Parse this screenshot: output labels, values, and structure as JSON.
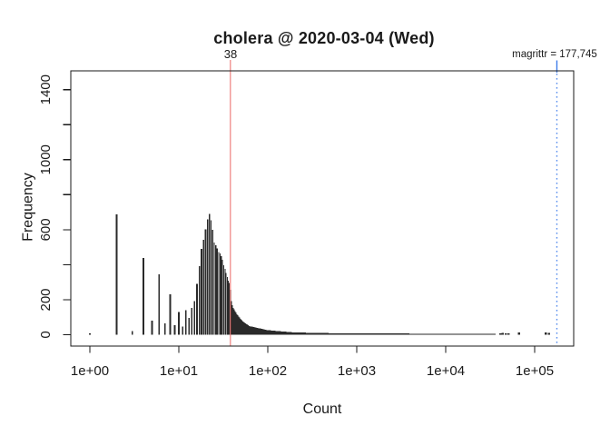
{
  "chart_data": {
    "type": "bar",
    "subtype": "histogram-log-x",
    "title": "cholera @ 2020-03-04 (Wed)",
    "xlabel": "Count",
    "ylabel": "Frequency",
    "x_scale": "log10",
    "x_range": [
      1,
      177745
    ],
    "ylim": [
      0,
      1450
    ],
    "grid": false,
    "x_ticks": [
      {
        "value": 1,
        "label": "1e+00"
      },
      {
        "value": 10,
        "label": "1e+01"
      },
      {
        "value": 100,
        "label": "1e+02"
      },
      {
        "value": 1000,
        "label": "1e+03"
      },
      {
        "value": 10000,
        "label": "1e+04"
      },
      {
        "value": 100000,
        "label": "1e+05"
      }
    ],
    "y_ticks": [
      {
        "value": 0,
        "label": "0"
      },
      {
        "value": 200,
        "label": "200"
      },
      {
        "value": 400,
        "label": ""
      },
      {
        "value": 600,
        "label": "600"
      },
      {
        "value": 800,
        "label": ""
      },
      {
        "value": 1000,
        "label": "1000"
      },
      {
        "value": 1200,
        "label": ""
      },
      {
        "value": 1400,
        "label": "1400"
      }
    ],
    "marker_red": {
      "value": 38,
      "label": "38",
      "color": "#e8403c"
    },
    "marker_blue": {
      "value": 177745,
      "label": "magrittr = 177,745",
      "color": "#3d7bea"
    },
    "bar_color": "#2a2a2a",
    "bars": [
      [
        1,
        8
      ],
      [
        2,
        688
      ],
      [
        3,
        22
      ],
      [
        4,
        438
      ],
      [
        5,
        80
      ],
      [
        6,
        346
      ],
      [
        7,
        65
      ],
      [
        8,
        232
      ],
      [
        9,
        55
      ],
      [
        10,
        130
      ],
      [
        11,
        48
      ],
      [
        12,
        140
      ],
      [
        13,
        95
      ],
      [
        14,
        152
      ],
      [
        15,
        192
      ],
      [
        16,
        290
      ],
      [
        17,
        392
      ],
      [
        18,
        490
      ],
      [
        19,
        542
      ],
      [
        20,
        602
      ],
      [
        21,
        660
      ],
      [
        22,
        690
      ],
      [
        23,
        655
      ],
      [
        24,
        600
      ],
      [
        25,
        528
      ],
      [
        26,
        512
      ],
      [
        27,
        494
      ],
      [
        28,
        472
      ],
      [
        29,
        465
      ],
      [
        30,
        448
      ],
      [
        31,
        428
      ],
      [
        32,
        398
      ],
      [
        33,
        375
      ],
      [
        34,
        352
      ],
      [
        35,
        330
      ],
      [
        36,
        310
      ],
      [
        37,
        295
      ],
      [
        38,
        258
      ],
      [
        39,
        192
      ],
      [
        40,
        168
      ],
      [
        41,
        152
      ],
      [
        42,
        146
      ],
      [
        43,
        136
      ],
      [
        44,
        126
      ],
      [
        45,
        118
      ],
      [
        46,
        112
      ],
      [
        47,
        105
      ],
      [
        48,
        98
      ],
      [
        49,
        92
      ],
      [
        50,
        87
      ],
      [
        51,
        82
      ],
      [
        52,
        78
      ],
      [
        53,
        74
      ],
      [
        54,
        70
      ],
      [
        55,
        67
      ],
      [
        56,
        64
      ],
      [
        57,
        62
      ],
      [
        58,
        60
      ],
      [
        59,
        57
      ],
      [
        60,
        54
      ]
    ],
    "tail_segments": [
      {
        "from": 61,
        "to": 100,
        "f0": 50,
        "f1": 26
      },
      {
        "from": 100,
        "to": 200,
        "f0": 26,
        "f1": 13
      },
      {
        "from": 200,
        "to": 500,
        "f0": 13,
        "f1": 9
      },
      {
        "from": 500,
        "to": 2000,
        "f0": 9,
        "f1": 7
      },
      {
        "from": 2000,
        "to": 8000,
        "f0": 7,
        "f1": 6
      },
      {
        "from": 8000,
        "to": 36000,
        "f0": 6,
        "f1": 5
      }
    ],
    "outliers": [
      [
        41000,
        8
      ],
      [
        43500,
        10
      ],
      [
        47500,
        9
      ],
      [
        51000,
        8
      ],
      [
        66500,
        12
      ],
      [
        134000,
        12
      ],
      [
        145000,
        10
      ]
    ]
  }
}
